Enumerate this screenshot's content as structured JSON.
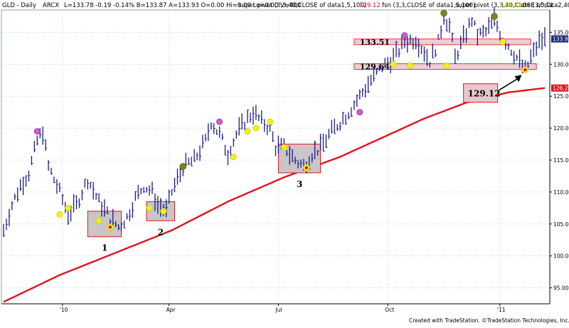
{
  "header": {
    "symbol": "GLD - Daily",
    "exchange": "ARCX",
    "ohlc": "L=133.78  -0.19  -0.14%  B=133.87  A=133.93  O=0.00  Hi=0.00  Lo=0.00  V=400",
    "study1": "super pivot (3,3,40,CLOSE of data1,5,100)",
    "study1_value": "129.12",
    "study2": "fsn (3,3,CLOSE of data1,5,100)",
    "study3": "super pivot (3,3,40,CLOSE of data2,40,...",
    "study3_value": "133.51",
    "study4": "ute (3,3,CL"
  },
  "credit": "Created with TradeStation. ©TradeStation Technologies, Inc. All rights reserved.",
  "colors": {
    "background": "#ffffff",
    "price_bars": "#1a1a8c",
    "moving_average": "#e0141e",
    "grid": "#9fbfa7",
    "annotation_box_fill": "#c8c6c6",
    "annotation_box_stroke": "#e0141e",
    "pivot_low_marker": "#f2ef1c",
    "pivot_high_marker": "#808020",
    "magenta_marker": "#d05ad0",
    "last_price_tag": "#1a2a7a",
    "ma_price_tag": "#e0141e"
  },
  "chart_data": {
    "type": "candlestick",
    "title": "GLD - Daily",
    "x_tick_labels": [
      "'10",
      "Apr",
      "Jul",
      "Oct",
      "'11"
    ],
    "y_tick_labels": [
      "95.00",
      "100.00",
      "105.00",
      "110.00",
      "115.00",
      "120.00",
      "125.00",
      "130.00",
      "135.00"
    ],
    "ylim": [
      92.5,
      138.5
    ],
    "grid": true,
    "last_price": "133.97",
    "ma_last": "126.28",
    "price_path_anchors": [
      [
        0,
        104
      ],
      [
        3,
        108
      ],
      [
        6,
        111
      ],
      [
        9,
        113
      ],
      [
        12,
        118
      ],
      [
        14,
        119.5
      ],
      [
        16,
        114
      ],
      [
        20,
        110
      ],
      [
        23,
        106.5
      ],
      [
        26,
        108
      ],
      [
        30,
        112
      ],
      [
        34,
        108.5
      ],
      [
        38,
        106
      ],
      [
        41,
        104.5
      ],
      [
        44,
        106
      ],
      [
        47,
        109
      ],
      [
        50,
        111
      ],
      [
        53,
        110
      ],
      [
        55,
        108
      ],
      [
        58,
        107
      ],
      [
        60,
        110
      ],
      [
        64,
        114
      ],
      [
        68,
        115
      ],
      [
        72,
        118
      ],
      [
        74,
        121
      ],
      [
        77,
        119
      ],
      [
        80,
        116
      ],
      [
        83,
        119
      ],
      [
        86,
        121
      ],
      [
        89,
        122.5
      ],
      [
        92,
        121
      ],
      [
        95,
        120
      ],
      [
        97,
        117
      ],
      [
        100,
        117
      ],
      [
        104,
        115
      ],
      [
        107,
        114
      ],
      [
        110,
        116
      ],
      [
        113,
        117
      ],
      [
        117,
        119.5
      ],
      [
        120,
        121
      ],
      [
        123,
        122.5
      ],
      [
        127,
        125
      ],
      [
        131,
        127.5
      ],
      [
        135,
        129.5
      ],
      [
        139,
        131
      ],
      [
        143,
        133.5
      ],
      [
        147,
        134
      ],
      [
        150,
        132
      ],
      [
        152,
        130.5
      ],
      [
        155,
        133.5
      ],
      [
        157,
        137.5
      ],
      [
        159,
        136
      ],
      [
        161,
        131
      ],
      [
        164,
        134
      ],
      [
        167,
        137
      ],
      [
        169,
        134.5
      ],
      [
        172,
        135
      ],
      [
        175,
        137
      ],
      [
        178,
        134
      ],
      [
        180,
        133
      ],
      [
        183,
        131
      ],
      [
        186,
        129
      ],
      [
        188,
        131
      ],
      [
        191,
        133.5
      ],
      [
        193,
        134
      ]
    ],
    "moving_average_anchors": [
      [
        0,
        92.8
      ],
      [
        20,
        97
      ],
      [
        40,
        100.5
      ],
      [
        60,
        104
      ],
      [
        80,
        108.5
      ],
      [
        100,
        112.3
      ],
      [
        120,
        115.5
      ],
      [
        135,
        118.5
      ],
      [
        150,
        121.5
      ],
      [
        165,
        124
      ],
      [
        180,
        125.6
      ],
      [
        193,
        126.28
      ]
    ],
    "support_resistance_bands": [
      {
        "label": "133.51",
        "value": 133.51
      },
      {
        "label": "129.64",
        "value": 129.64
      }
    ],
    "callouts": [
      {
        "label": "129.12",
        "value": 129.12
      }
    ],
    "numbered_zones": [
      {
        "label": "1",
        "x_from": 30,
        "x_to": 42,
        "y_from": 103,
        "y_to": 107
      },
      {
        "label": "2",
        "x_from": 51,
        "x_to": 61,
        "y_from": 105.5,
        "y_to": 108.5
      },
      {
        "label": "3",
        "x_from": 98,
        "x_to": 113,
        "y_from": 113,
        "y_to": 117.5
      }
    ],
    "markers": [
      {
        "type": "high",
        "color": "magenta",
        "x": 12,
        "y": 119.5
      },
      {
        "type": "low",
        "color": "yellow",
        "x": 20,
        "y": 106.5
      },
      {
        "type": "low",
        "color": "yellow",
        "x": 23,
        "y": 107.5
      },
      {
        "type": "low",
        "color": "yellow",
        "x": 34,
        "y": 105.5
      },
      {
        "type": "pivot",
        "color": "red-on-yellow",
        "x": 38,
        "y": 104.5
      },
      {
        "type": "low",
        "color": "yellow",
        "x": 52,
        "y": 107.5
      },
      {
        "type": "low",
        "color": "yellow",
        "x": 57,
        "y": 107
      },
      {
        "type": "high",
        "color": "olive",
        "x": 64,
        "y": 114
      },
      {
        "type": "high",
        "color": "magenta",
        "x": 77,
        "y": 121
      },
      {
        "type": "low",
        "color": "yellow",
        "x": 82,
        "y": 115.5
      },
      {
        "type": "low",
        "color": "yellow",
        "x": 87,
        "y": 119.5
      },
      {
        "type": "low",
        "color": "yellow",
        "x": 90,
        "y": 120
      },
      {
        "type": "low",
        "color": "yellow",
        "x": 95,
        "y": 121
      },
      {
        "type": "low",
        "color": "yellow",
        "x": 100,
        "y": 117
      },
      {
        "type": "pivot",
        "color": "red-on-yellow",
        "x": 108,
        "y": 113.8
      },
      {
        "type": "high",
        "color": "magenta",
        "x": 127,
        "y": 122.5
      },
      {
        "type": "high",
        "color": "magenta",
        "x": 143,
        "y": 134.5
      },
      {
        "type": "low",
        "color": "yellow",
        "x": 139,
        "y": 130
      },
      {
        "type": "low",
        "color": "yellow",
        "x": 145,
        "y": 129.8
      },
      {
        "type": "high",
        "color": "olive",
        "x": 157,
        "y": 138
      },
      {
        "type": "high",
        "color": "olive",
        "x": 175,
        "y": 137.5
      },
      {
        "type": "low",
        "color": "yellow",
        "x": 158,
        "y": 129.8
      },
      {
        "type": "low",
        "color": "yellow",
        "x": 178,
        "y": 133.5
      },
      {
        "type": "pivot",
        "color": "red-on-yellow",
        "x": 186,
        "y": 129.12
      }
    ]
  }
}
